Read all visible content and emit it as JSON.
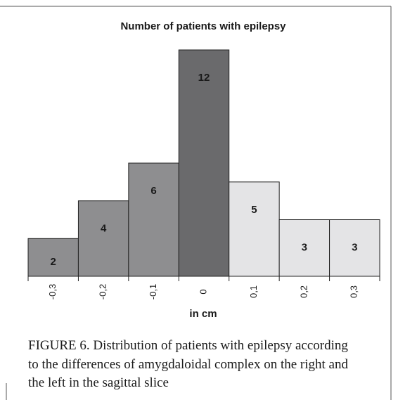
{
  "chart_data": {
    "type": "bar",
    "title": "Number of patients with epilepsy",
    "categories": [
      "-0,3",
      "-0,2",
      "-0,1",
      "0",
      "0,1",
      "0,2",
      "0,3"
    ],
    "values": [
      2,
      4,
      6,
      12,
      5,
      3,
      3
    ],
    "colors": [
      "#8e8e90",
      "#8e8e90",
      "#8e8e90",
      "#6a6a6c",
      "#e4e4e6",
      "#e4e4e6",
      "#e4e4e6"
    ],
    "x_label": "in cm",
    "grid": false
  },
  "caption": [
    "FIGURE 6.  Distribution of patients with epilepsy according",
    "to the differences of amygdaloidal complex on the right and",
    "the left  in the sagittal slice"
  ]
}
